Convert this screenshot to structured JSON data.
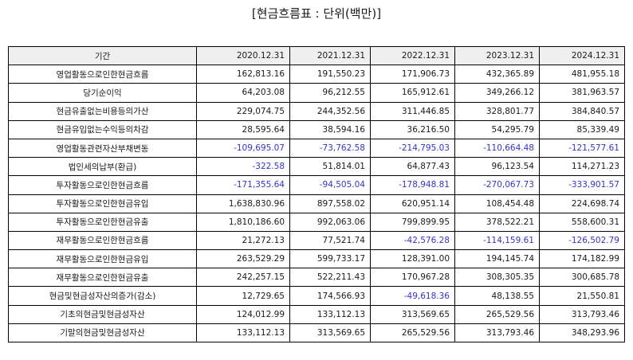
{
  "title": "[현금흐름표 : 단위(백만)]",
  "colors": {
    "negative": "#3333cc",
    "header_bg": "#efefef"
  },
  "table": {
    "headers": [
      "기간",
      "2020.12.31",
      "2021.12.31",
      "2022.12.31",
      "2023.12.31",
      "2024.12.31"
    ],
    "rows": [
      {
        "label": "영업활동으로인한현금흐름",
        "values": [
          "162,813.16",
          "191,550.23",
          "171,906.73",
          "432,365.89",
          "481,955.18"
        ]
      },
      {
        "label": "당기순이익",
        "values": [
          "64,203.08",
          "96,212.55",
          "165,912.61",
          "349,266.12",
          "381,963.57"
        ]
      },
      {
        "label": "현금유출없는비용등의가산",
        "values": [
          "229,074.75",
          "244,352.56",
          "311,446.85",
          "328,801.77",
          "384,840.57"
        ]
      },
      {
        "label": "현금유입없는수익등의차감",
        "values": [
          "28,595.64",
          "38,594.16",
          "36,216.50",
          "54,295.79",
          "85,339.49"
        ]
      },
      {
        "label": "영업활동관련자산부채변동",
        "values": [
          "-109,695.07",
          "-73,762.58",
          "-214,795.03",
          "-110,664.48",
          "-121,577.61"
        ]
      },
      {
        "label": "법인세의납부(환급)",
        "values": [
          "-322.58",
          "51,814.01",
          "64,877.43",
          "96,123.54",
          "114,271.23"
        ]
      },
      {
        "label": "투자활동으로인한현금흐름",
        "values": [
          "-171,355.64",
          "-94,505.04",
          "-178,948.81",
          "-270,067.73",
          "-333,901.57"
        ]
      },
      {
        "label": "투자활동으로인한현금유입",
        "values": [
          "1,638,830.96",
          "897,558.02",
          "620,951.14",
          "108,454.48",
          "224,698.74"
        ]
      },
      {
        "label": "투자활동으로인한현금유출",
        "values": [
          "1,810,186.60",
          "992,063.06",
          "799,899.95",
          "378,522.21",
          "558,600.31"
        ]
      },
      {
        "label": "재무활동으로인한현금흐름",
        "values": [
          "21,272.13",
          "77,521.74",
          "-42,576.28",
          "-114,159.61",
          "-126,502.79"
        ]
      },
      {
        "label": "재무활동으로인한현금유입",
        "values": [
          "263,529.29",
          "599,733.17",
          "128,391.00",
          "194,145.74",
          "174,182.99"
        ]
      },
      {
        "label": "재무활동으로인한현금유출",
        "values": [
          "242,257.15",
          "522,211.43",
          "170,967.28",
          "308,305.35",
          "300,685.78"
        ]
      },
      {
        "label": "현금및현금성자산의증가(감소)",
        "values": [
          "12,729.65",
          "174,566.93",
          "-49,618.36",
          "48,138.55",
          "21,550.81"
        ]
      },
      {
        "label": "기초의현금및현금성자산",
        "values": [
          "124,012.99",
          "133,112.13",
          "313,569.65",
          "265,529.56",
          "313,793.46"
        ]
      },
      {
        "label": "기말의현금및현금성자산",
        "values": [
          "133,112.13",
          "313,569.65",
          "265,529.56",
          "313,793.46",
          "348,293.96"
        ]
      }
    ]
  }
}
